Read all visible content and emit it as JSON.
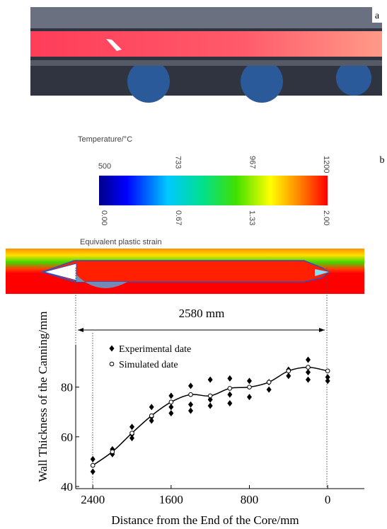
{
  "panel_labels": [
    "a",
    "b"
  ],
  "colorbar": {
    "title": "Temperature/°C",
    "temperature_ticks": [
      500,
      733,
      967,
      1200
    ],
    "temperature_lim": [
      500,
      1200
    ],
    "strain_ticks": [
      {
        "value": 0,
        "label": "0.00"
      },
      {
        "value": 0.67,
        "label": "0.67"
      },
      {
        "value": 1.33,
        "label": "1.33"
      },
      {
        "value": 2,
        "label": "2.00"
      }
    ],
    "strain_lim": [
      0,
      2
    ],
    "strain_title": "Equivalent plastic strain"
  },
  "dimension_label": "2580 mm",
  "chart_data": {
    "type": "scatter",
    "xlabel": "Distance from the End of the Core/mm",
    "ylabel": "Wall Thickness of the Canning/mm",
    "xlim": [
      2575,
      -375
    ],
    "ylim": [
      40,
      97
    ],
    "xticks": [
      2400,
      1600,
      800,
      0
    ],
    "yticks": [
      40,
      60,
      80
    ],
    "legend": "top-left",
    "series": [
      {
        "name": "Experimental date",
        "marker": "diamond",
        "color": "#000000",
        "x": [
          2400,
          2400,
          2200,
          2200,
          2000,
          2000,
          2000,
          1800,
          1800,
          1800,
          1600,
          1600,
          1600,
          1400,
          1400,
          1400,
          1200,
          1200,
          1200,
          1000,
          1000,
          1000,
          800,
          800,
          600,
          600,
          400,
          400,
          200,
          200,
          200,
          0,
          0
        ],
        "y": [
          51,
          46,
          55,
          53,
          64,
          61,
          59.5,
          72,
          68,
          66.5,
          76.5,
          72,
          69.5,
          80.5,
          73,
          70.5,
          83,
          75,
          72.5,
          83.5,
          77,
          73.5,
          82.5,
          76,
          82,
          79,
          87,
          84.5,
          91,
          86,
          83,
          84,
          82.5
        ]
      },
      {
        "name": "Simulated date",
        "marker": "circle",
        "color": "#000000",
        "line": true,
        "x": [
          2400,
          2200,
          2000,
          1800,
          1600,
          1400,
          1200,
          1000,
          800,
          600,
          400,
          200,
          0
        ],
        "y": [
          48.5,
          54,
          61.5,
          68.5,
          74,
          77,
          76.5,
          79.5,
          80,
          82,
          86.5,
          88,
          86.5
        ]
      }
    ]
  }
}
